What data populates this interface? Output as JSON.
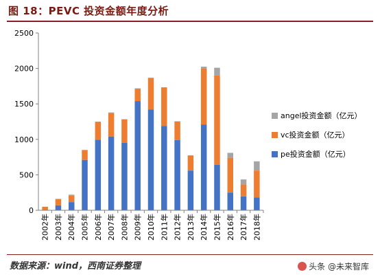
{
  "figure": {
    "title": "图 18：PEVC 投资金额年度分析",
    "source": "数据来源：wind，西南证券整理",
    "watermark": "头条 @未来智库"
  },
  "chart_data": {
    "type": "bar",
    "stacked": true,
    "categories": [
      "2002年",
      "2003年",
      "2004年",
      "2005年",
      "2006年",
      "2007年",
      "2008年",
      "2009年",
      "2010年",
      "2011年",
      "2012年",
      "2013年",
      "2014年",
      "2015年",
      "2016年",
      "2017年",
      "2018年"
    ],
    "series": [
      {
        "name": "pe投资金额（亿元）",
        "color": "#4472c4",
        "values": [
          5,
          70,
          115,
          710,
          995,
          1040,
          950,
          1540,
          1420,
          1190,
          990,
          560,
          1210,
          640,
          250,
          195,
          180
        ]
      },
      {
        "name": "vc投资金额（亿元）",
        "color": "#ed7d31",
        "values": [
          45,
          90,
          95,
          140,
          250,
          330,
          330,
          170,
          440,
          540,
          260,
          210,
          790,
          1260,
          490,
          170,
          380
        ]
      },
      {
        "name": "angel投资金额（亿元）",
        "color": "#a5a5a5",
        "values": [
          0,
          0,
          10,
          0,
          5,
          10,
          5,
          10,
          10,
          5,
          5,
          5,
          25,
          110,
          70,
          70,
          130
        ]
      }
    ],
    "legend_order": [
      "angel投资金额（亿元）",
      "vc投资金额（亿元）",
      "pe投资金额（亿元）"
    ],
    "legend_position": "right",
    "yticks": [
      0,
      500,
      1000,
      1500,
      2000,
      2500
    ],
    "ylim": [
      0,
      2500
    ],
    "grid": false
  }
}
